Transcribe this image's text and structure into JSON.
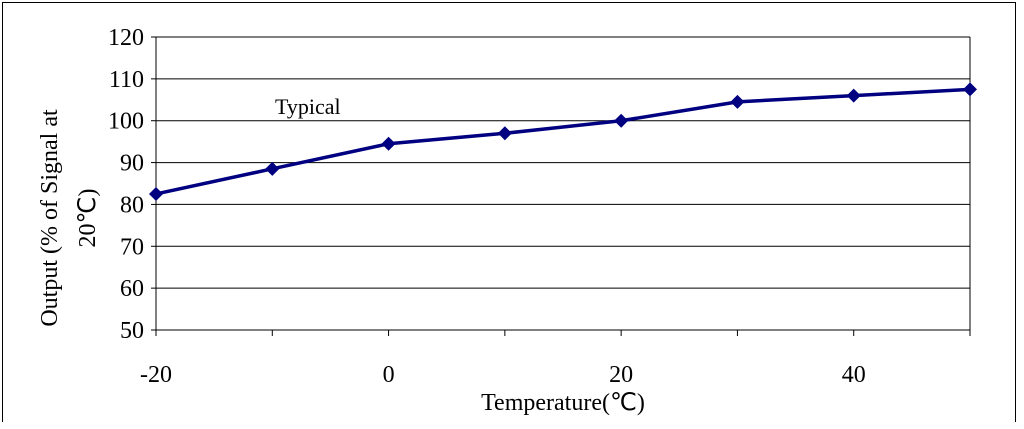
{
  "chart_data": {
    "type": "line",
    "title": "",
    "xlabel": "Temperature(℃)",
    "ylabel_lines": [
      "Output (% of Signal at",
      "20℃)"
    ],
    "annotation": "Typical",
    "xlim": [
      -20,
      50
    ],
    "ylim": [
      50,
      120
    ],
    "x_ticks": [
      -20,
      0,
      20,
      40
    ],
    "y_ticks": [
      50,
      60,
      70,
      80,
      90,
      100,
      110,
      120
    ],
    "grid": "horizontal",
    "series": [
      {
        "x": [
          -20,
          -10,
          0,
          10,
          20,
          30,
          40,
          50
        ],
        "y": [
          82.5,
          88.5,
          94.5,
          97,
          100,
          104.5,
          106,
          107.5
        ]
      }
    ],
    "colors": {
      "line": "#000080",
      "marker": "#000080",
      "grid": "#000000"
    }
  }
}
